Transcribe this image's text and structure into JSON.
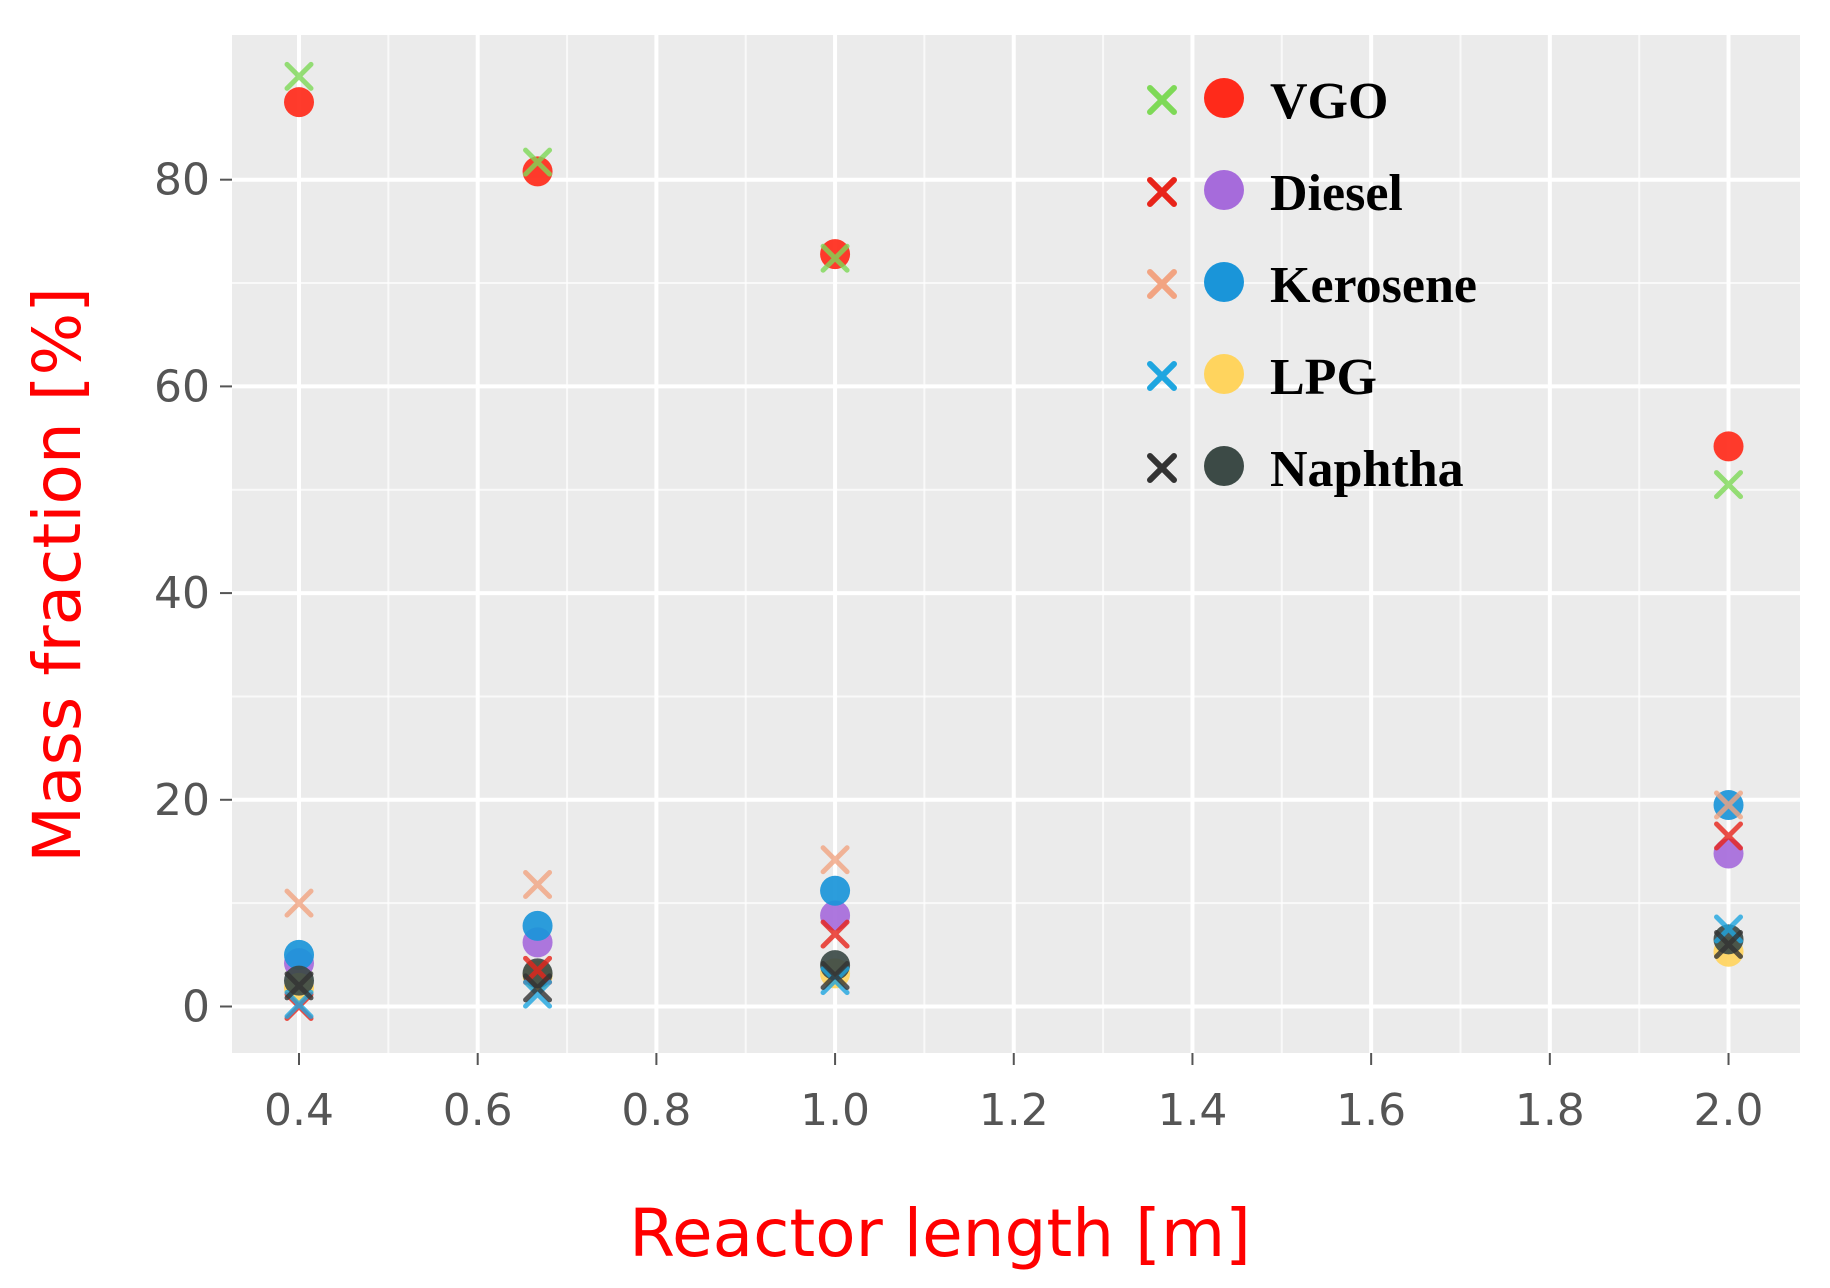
{
  "chart_data": {
    "type": "scatter",
    "title": "",
    "xlabel": "Reactor length [m]",
    "ylabel": "Mass fraction [%]",
    "xlim": [
      0.325,
      2.08
    ],
    "ylim": [
      -4.5,
      94
    ],
    "x_ticks": [
      "0.4",
      "0.6",
      "0.8",
      "1.0",
      "1.2",
      "1.4",
      "1.6",
      "1.8",
      "2.0"
    ],
    "y_ticks": [
      "0",
      "20",
      "40",
      "60",
      "80"
    ],
    "grid": true,
    "background_color": "#ebebeb",
    "grid_color": "#ffffff",
    "legend_position": "top-right",
    "x": [
      0.4,
      0.667,
      1.0,
      2.0
    ],
    "series": [
      {
        "name": "VGO",
        "cross_color": "#7ed957",
        "dot_color": "#ff2a1a",
        "measured": [
          87.5,
          80.8,
          72.8,
          54.2
        ],
        "simulated": [
          90.0,
          81.7,
          72.4,
          50.5
        ]
      },
      {
        "name": "Diesel",
        "cross_color": "#e8241a",
        "dot_color": "#a66bdb",
        "measured": [
          4.2,
          6.2,
          8.8,
          14.8
        ],
        "simulated": [
          0.0,
          3.5,
          7.0,
          16.5
        ]
      },
      {
        "name": "Kerosene",
        "cross_color": "#f2a482",
        "dot_color": "#1a95d9",
        "measured": [
          5.0,
          7.8,
          11.2,
          19.5
        ],
        "simulated": [
          10.0,
          11.8,
          14.2,
          19.5
        ]
      },
      {
        "name": "LPG",
        "cross_color": "#1fa6e0",
        "dot_color": "#ffd45e",
        "measured": [
          1.8,
          3.0,
          3.2,
          5.3
        ],
        "simulated": [
          0.2,
          1.2,
          2.5,
          7.5
        ]
      },
      {
        "name": "Naphtha",
        "cross_color": "#333333",
        "dot_color": "#3c4a46",
        "measured": [
          2.5,
          3.2,
          4.0,
          6.5
        ],
        "simulated": [
          2.0,
          1.8,
          3.0,
          6.0
        ]
      }
    ]
  }
}
